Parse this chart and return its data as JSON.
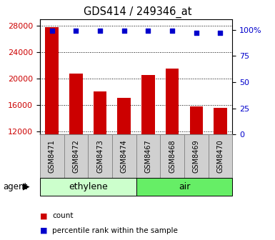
{
  "title": "GDS414 / 249346_at",
  "categories": [
    "GSM8471",
    "GSM8472",
    "GSM8473",
    "GSM8474",
    "GSM8467",
    "GSM8468",
    "GSM8469",
    "GSM8470"
  ],
  "bar_values": [
    27800,
    20700,
    18000,
    17000,
    20500,
    21500,
    15800,
    15500
  ],
  "percentile_values": [
    99,
    99,
    99,
    99,
    99,
    99,
    97,
    97
  ],
  "bar_color": "#cc0000",
  "dot_color": "#0000cc",
  "ylim_left": [
    11500,
    29000
  ],
  "yticks_left": [
    12000,
    16000,
    20000,
    24000,
    28000
  ],
  "ylim_right": [
    0,
    110
  ],
  "yticks_right": [
    0,
    25,
    50,
    75,
    100
  ],
  "yticklabels_right": [
    "0",
    "25",
    "50",
    "75",
    "100%"
  ],
  "group_labels": [
    "ethylene",
    "air"
  ],
  "group_ranges": [
    [
      0,
      4
    ],
    [
      4,
      8
    ]
  ],
  "group_colors_light": [
    "#ccffcc",
    "#66ee66"
  ],
  "agent_label": "agent",
  "legend_items": [
    "count",
    "percentile rank within the sample"
  ],
  "legend_colors": [
    "#cc0000",
    "#0000cc"
  ],
  "left_axis_color": "#cc0000",
  "right_axis_color": "#0000cc",
  "bar_bottom": 11500,
  "tick_label_bg": "#d0d0d0",
  "tick_label_border": "#888888"
}
